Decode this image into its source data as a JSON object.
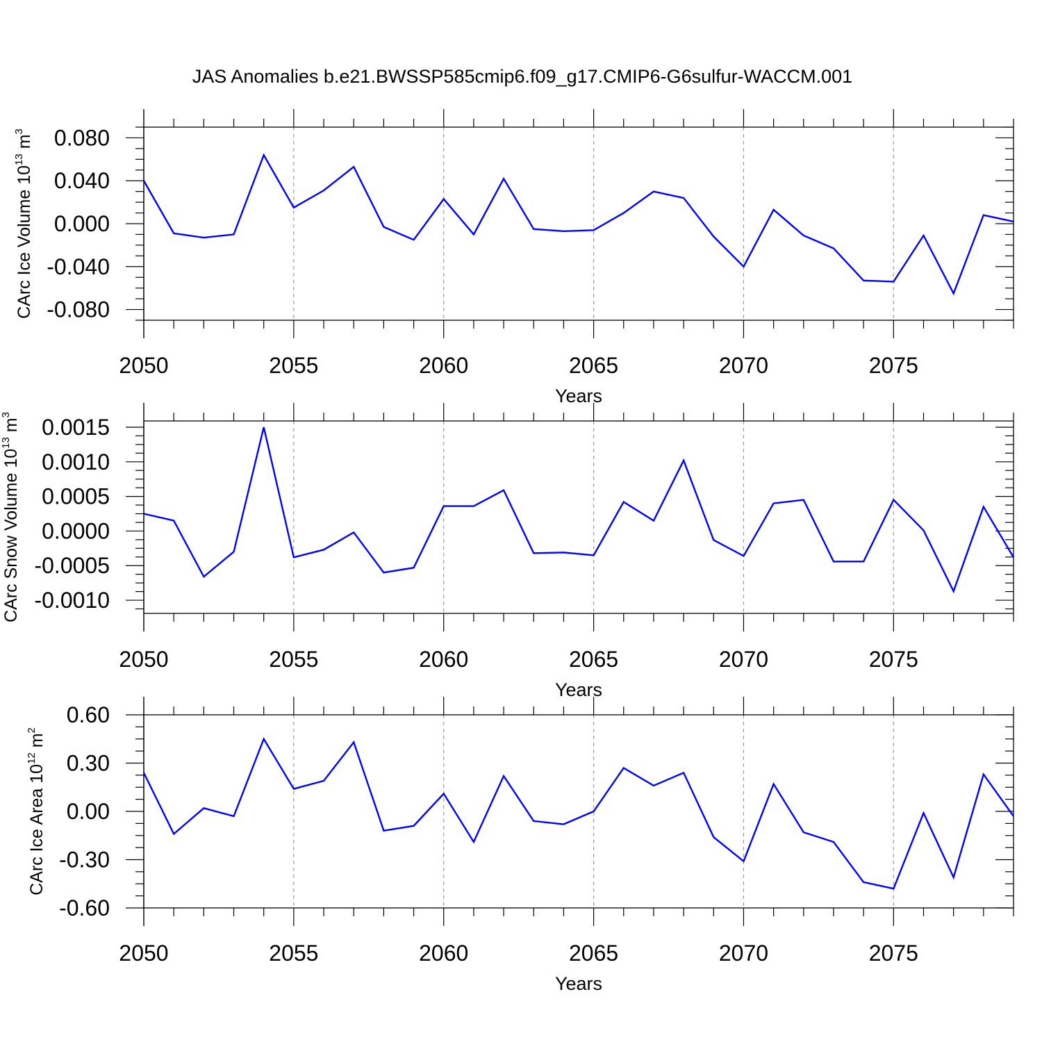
{
  "title": "JAS Anomalies b.e21.BWSSP585cmip6.f09_g17.CMIP6-G6sulfur-WACCM.001",
  "chart_data": [
    {
      "type": "line",
      "ylabel_text": "CArc Ice Volume 10",
      "ylabel_exp": "13",
      "ylabel_unit": "m",
      "ylabel_unit_exp": "3",
      "xlabel": "Years",
      "xlim": [
        2050,
        2079
      ],
      "ylim": [
        -0.09,
        0.09
      ],
      "yticks": [
        -0.08,
        -0.04,
        0.0,
        0.04,
        0.08
      ],
      "ytick_labels": [
        "-0.080",
        "-0.040",
        "0.000",
        "0.040",
        "0.080"
      ],
      "xticks": [
        2050,
        2055,
        2060,
        2065,
        2070,
        2075
      ],
      "xtick_labels": [
        "2050",
        "2055",
        "2060",
        "2065",
        "2070",
        "2075"
      ],
      "grid": "vertical dashed at major x ticks",
      "series": [
        {
          "color": "#0000ff",
          "x": [
            2050,
            2051,
            2052,
            2053,
            2054,
            2055,
            2056,
            2057,
            2058,
            2059,
            2060,
            2061,
            2062,
            2063,
            2064,
            2065,
            2066,
            2067,
            2068,
            2069,
            2070,
            2071,
            2072,
            2073,
            2074,
            2075,
            2076,
            2077,
            2078,
            2079
          ],
          "values": [
            0.04,
            -0.009,
            -0.013,
            -0.01,
            0.064,
            0.015,
            0.031,
            0.053,
            -0.003,
            -0.015,
            0.023,
            -0.01,
            0.042,
            -0.005,
            -0.007,
            -0.006,
            0.01,
            0.03,
            0.024,
            -0.012,
            -0.04,
            0.013,
            -0.011,
            -0.023,
            -0.053,
            -0.054,
            -0.011,
            -0.065,
            0.008,
            0.002
          ]
        }
      ]
    },
    {
      "type": "line",
      "ylabel_text": "CArc Snow Volume 10",
      "ylabel_exp": "13",
      "ylabel_unit": "m",
      "ylabel_unit_exp": "3",
      "xlabel": "Years",
      "xlim": [
        2050,
        2079
      ],
      "ylim": [
        -0.00119,
        0.00159
      ],
      "yticks": [
        -0.001,
        -0.0005,
        0.0,
        0.0005,
        0.001,
        0.0015
      ],
      "ytick_labels": [
        "-0.0010",
        "-0.0005",
        "0.0000",
        "0.0005",
        "0.0010",
        "0.0015"
      ],
      "xticks": [
        2050,
        2055,
        2060,
        2065,
        2070,
        2075
      ],
      "xtick_labels": [
        "2050",
        "2055",
        "2060",
        "2065",
        "2070",
        "2075"
      ],
      "grid": "vertical dashed at major x ticks",
      "series": [
        {
          "color": "#0000ff",
          "x": [
            2050,
            2051,
            2052,
            2053,
            2054,
            2055,
            2056,
            2057,
            2058,
            2059,
            2060,
            2061,
            2062,
            2063,
            2064,
            2065,
            2066,
            2067,
            2068,
            2069,
            2070,
            2071,
            2072,
            2073,
            2074,
            2075,
            2076,
            2077,
            2078,
            2079
          ],
          "values": [
            0.00025,
            0.00015,
            -0.00066,
            -0.0003,
            0.0015,
            -0.00038,
            -0.00027,
            -2e-05,
            -0.0006,
            -0.00053,
            0.00036,
            0.00036,
            0.00059,
            -0.00032,
            -0.00031,
            -0.00035,
            0.00042,
            0.00015,
            0.00102,
            -0.00013,
            -0.00036,
            0.0004,
            0.00045,
            -0.00044,
            -0.00044,
            0.00045,
            1e-05,
            -0.00087,
            0.00035,
            -0.00038
          ]
        }
      ]
    },
    {
      "type": "line",
      "ylabel_text": "CArc Ice Area 10",
      "ylabel_exp": "12",
      "ylabel_unit": "m",
      "ylabel_unit_exp": "2",
      "xlabel": "Years",
      "xlim": [
        2050,
        2079
      ],
      "ylim": [
        -0.6,
        0.6
      ],
      "yticks": [
        -0.6,
        -0.3,
        0.0,
        0.3,
        0.6
      ],
      "ytick_labels": [
        "-0.60",
        "-0.30",
        "0.00",
        "0.30",
        "0.60"
      ],
      "xticks": [
        2050,
        2055,
        2060,
        2065,
        2070,
        2075
      ],
      "xtick_labels": [
        "2050",
        "2055",
        "2060",
        "2065",
        "2070",
        "2075"
      ],
      "grid": "vertical dashed at major x ticks",
      "series": [
        {
          "color": "#0000ff",
          "x": [
            2050,
            2051,
            2052,
            2053,
            2054,
            2055,
            2056,
            2057,
            2058,
            2059,
            2060,
            2061,
            2062,
            2063,
            2064,
            2065,
            2066,
            2067,
            2068,
            2069,
            2070,
            2071,
            2072,
            2073,
            2074,
            2075,
            2076,
            2077,
            2078,
            2079
          ],
          "values": [
            0.24,
            -0.14,
            0.02,
            -0.03,
            0.45,
            0.14,
            0.19,
            0.43,
            -0.12,
            -0.09,
            0.11,
            -0.19,
            0.22,
            -0.06,
            -0.08,
            0.0,
            0.27,
            0.16,
            0.24,
            -0.16,
            -0.31,
            0.17,
            -0.13,
            -0.19,
            -0.44,
            -0.48,
            -0.01,
            -0.41,
            0.23,
            -0.03
          ]
        }
      ]
    }
  ]
}
